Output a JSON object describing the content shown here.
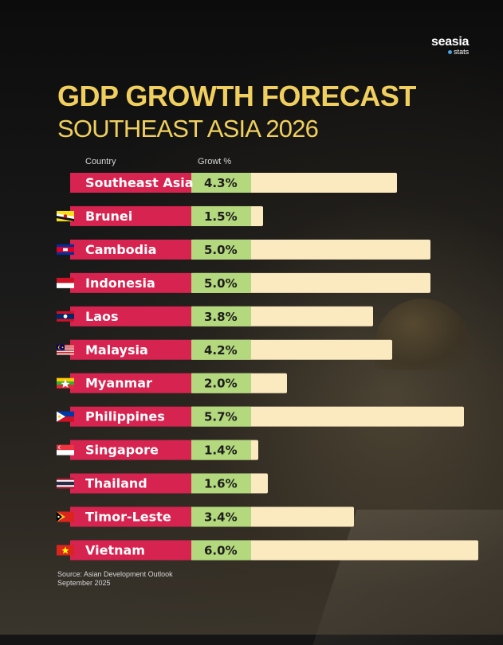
{
  "brand": {
    "name": "seasia",
    "sub": "stats"
  },
  "title": "GDP GROWTH FORECAST",
  "subtitle": "SOUTHEAST ASIA 2026",
  "source": {
    "line1": "Source: Asian Development Outlook",
    "line2": "September 2025"
  },
  "colors": {
    "title": "#f0cf5e",
    "country_bar": "#d7234f",
    "value_cell": "#b4d87d",
    "bar": "#fbe9bf"
  },
  "chart_data": {
    "type": "bar",
    "orientation": "horizontal",
    "column_headers": {
      "country": "Country",
      "value": "Growt %"
    },
    "categories": [
      "Southeast Asia",
      "Brunei",
      "Cambodia",
      "Indonesia",
      "Laos",
      "Malaysia",
      "Myanmar",
      "Philippines",
      "Singapore",
      "Thailand",
      "Timor-Leste",
      "Vietnam"
    ],
    "values": [
      4.3,
      1.5,
      5.0,
      5.0,
      3.8,
      4.2,
      2.0,
      5.7,
      1.4,
      1.6,
      3.4,
      6.0
    ],
    "value_labels": [
      "4.3%",
      "1.5%",
      "5.0%",
      "5.0%",
      "3.8%",
      "4.2%",
      "2.0%",
      "5.7%",
      "1.4%",
      "1.6%",
      "3.4%",
      "6.0%"
    ],
    "flags": [
      "",
      "brunei-flag-icon",
      "cambodia-flag-icon",
      "indonesia-flag-icon",
      "laos-flag-icon",
      "malaysia-flag-icon",
      "myanmar-flag-icon",
      "philippines-flag-icon",
      "singapore-flag-icon",
      "thailand-flag-icon",
      "timor-leste-flag-icon",
      "vietnam-flag-icon"
    ],
    "xlim": [
      0,
      6.0
    ]
  }
}
